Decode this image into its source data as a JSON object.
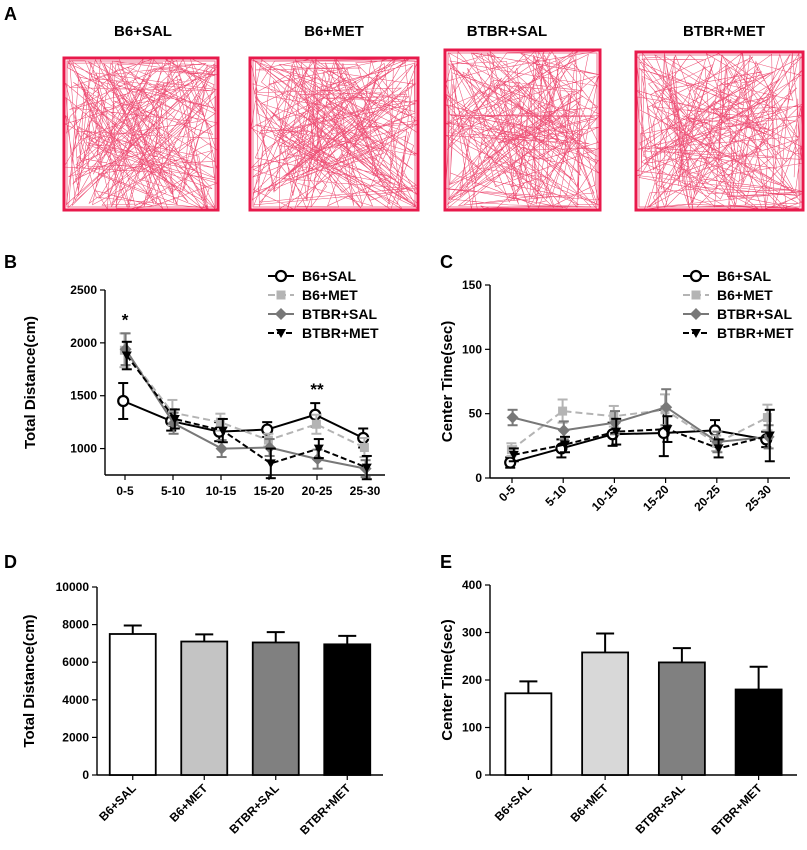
{
  "panel_labels": {
    "A": "A",
    "B": "B",
    "C": "C",
    "D": "D",
    "E": "E"
  },
  "colors": {
    "track": "#e8194b",
    "b6sal": "#000000",
    "b6met": "#b4b4b4",
    "btbrsal": "#787878",
    "btbrmet": "#000000",
    "bar_b6sal": "#ffffff",
    "bar_b6met": "#c4c4c4",
    "bar_btbrsal": "#808080",
    "bar_btbrmet": "#000000"
  },
  "tracks": [
    {
      "title": "B6+SAL"
    },
    {
      "title": "B6+MET"
    },
    {
      "title": "BTBR+SAL"
    },
    {
      "title": "BTBR+MET"
    }
  ],
  "chart_data": [
    {
      "panel": "B",
      "type": "line",
      "ylabel": "Total Distance(cm)",
      "xlabel": "",
      "categories": [
        "0-5",
        "5-10",
        "10-15",
        "15-20",
        "20-25",
        "25-30"
      ],
      "yticks": [
        1000,
        1500,
        2000,
        2500
      ],
      "ylim": [
        750,
        2500
      ],
      "legend_position": "top-right",
      "series": [
        {
          "name": "B6+SAL",
          "values": [
            1450,
            1260,
            1160,
            1180,
            1320,
            1100
          ],
          "err": [
            170,
            90,
            90,
            70,
            110,
            90
          ]
        },
        {
          "name": "B6+MET",
          "values": [
            1930,
            1340,
            1250,
            1080,
            1230,
            1010
          ],
          "err": [
            160,
            120,
            80,
            60,
            90,
            90
          ]
        },
        {
          "name": "BTBR+SAL",
          "values": [
            1940,
            1240,
            1000,
            1010,
            900,
            810
          ],
          "err": [
            150,
            100,
            80,
            80,
            90,
            80
          ]
        },
        {
          "name": "BTBR+MET",
          "values": [
            1880,
            1280,
            1170,
            860,
            1000,
            820
          ],
          "err": [
            130,
            90,
            110,
            140,
            90,
            110
          ]
        }
      ],
      "annotations": [
        {
          "category": "0-5",
          "text": "*"
        },
        {
          "category": "20-25",
          "text": "**"
        }
      ]
    },
    {
      "panel": "C",
      "type": "line",
      "ylabel": "Center Time(sec)",
      "xlabel": "",
      "categories": [
        "0-5",
        "5-10",
        "10-15",
        "15-20",
        "20-25",
        "25-30"
      ],
      "yticks": [
        0,
        50,
        100,
        150
      ],
      "ylim": [
        0,
        150
      ],
      "legend_position": "top-right",
      "series": [
        {
          "name": "B6+SAL",
          "values": [
            12,
            23,
            34,
            35,
            37,
            30
          ],
          "err": [
            4,
            7,
            9,
            18,
            8,
            6
          ]
        },
        {
          "name": "B6+MET",
          "values": [
            22,
            52,
            48,
            53,
            27,
            47
          ],
          "err": [
            5,
            9,
            8,
            12,
            6,
            10
          ]
        },
        {
          "name": "BTBR+SAL",
          "values": [
            47,
            37,
            43,
            55,
            28,
            32
          ],
          "err": [
            6,
            7,
            9,
            14,
            8,
            9
          ]
        },
        {
          "name": "BTBR+MET",
          "values": [
            18,
            26,
            36,
            38,
            23,
            33
          ],
          "err": [
            5,
            6,
            10,
            10,
            7,
            20
          ]
        }
      ]
    },
    {
      "panel": "D",
      "type": "bar",
      "ylabel": "Total Distance(cm)",
      "categories": [
        "B6+SAL",
        "B6+MET",
        "BTBR+SAL",
        "BTBR+MET"
      ],
      "values": [
        7500,
        7100,
        7050,
        6950
      ],
      "err": [
        450,
        380,
        550,
        450
      ],
      "yticks": [
        0,
        2000,
        4000,
        6000,
        8000,
        10000
      ],
      "ylim": [
        0,
        10000
      ]
    },
    {
      "panel": "E",
      "type": "bar",
      "ylabel": "Center Time(sec)",
      "categories": [
        "B6+SAL",
        "B6+MET",
        "BTBR+SAL",
        "BTBR+MET"
      ],
      "values": [
        172,
        258,
        237,
        180
      ],
      "err": [
        25,
        40,
        30,
        48
      ],
      "yticks": [
        0,
        100,
        200,
        300,
        400
      ],
      "ylim": [
        0,
        400
      ]
    }
  ]
}
